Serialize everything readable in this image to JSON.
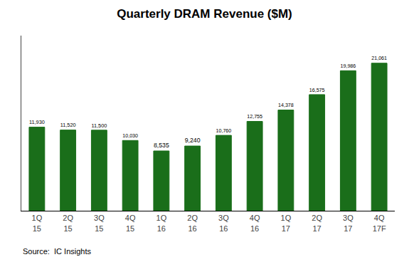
{
  "chart_data": {
    "type": "bar",
    "title": "Quarterly DRAM Revenue ($M)",
    "categories": [
      "1Q\n15",
      "2Q\n15",
      "3Q\n15",
      "4Q\n15",
      "1Q\n16",
      "2Q\n16",
      "3Q\n16",
      "4Q\n16",
      "1Q\n17",
      "2Q\n17",
      "3Q\n17",
      "4Q\n17F"
    ],
    "values": [
      11930,
      11520,
      11500,
      10030,
      8535,
      9240,
      10760,
      12755,
      14378,
      16575,
      19986,
      21061
    ],
    "value_labels": [
      "11,930",
      "11,520",
      "11,500",
      "10,030",
      "8,535",
      "9,240",
      "10,760",
      "12,755",
      "14,378",
      "16,575",
      "19,986",
      "21,061"
    ],
    "data_labels": true,
    "color": "#1a6e1a",
    "ylim": [
      0,
      25000
    ],
    "tick_labels": "x",
    "grid": false,
    "annotations": [
      "Source:  IC Insights"
    ]
  }
}
